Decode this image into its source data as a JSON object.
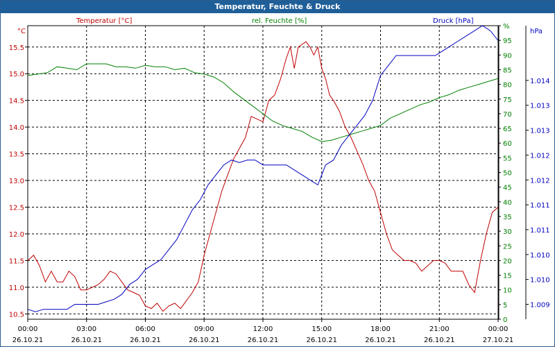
{
  "window": {
    "title": "Temperatur, Feuchte & Druck"
  },
  "colors": {
    "temperature": "#c00000",
    "humidity": "#008000",
    "pressure": "#0000c0",
    "titlebar": "#1f5f99"
  },
  "chart_data": {
    "type": "line",
    "grid": true,
    "legend": "top",
    "x_ticks": [
      {
        "time": "00:00",
        "date": "26.10.21"
      },
      {
        "time": "03:00",
        "date": "26.10.21"
      },
      {
        "time": "06:00",
        "date": "26.10.21"
      },
      {
        "time": "09:00",
        "date": "26.10.21"
      },
      {
        "time": "12:00",
        "date": "26.10.21"
      },
      {
        "time": "15:00",
        "date": "26.10.21"
      },
      {
        "time": "18:00",
        "date": "26.10.21"
      },
      {
        "time": "21:00",
        "date": "26.10.21"
      },
      {
        "time": "00:00",
        "date": "27.10.21"
      }
    ],
    "xlim_hours": [
      0,
      24
    ],
    "axes": {
      "temperature": {
        "unit": "°C",
        "ylim": [
          10.4,
          15.9
        ],
        "ticks": [
          "10.5",
          "11.0",
          "11.5",
          "12.0",
          "12.5",
          "13.0",
          "13.5",
          "14.0",
          "14.5",
          "15.0",
          "15.5"
        ]
      },
      "humidity": {
        "unit": "%",
        "ylim": [
          0,
          100
        ],
        "ticks": [
          "0",
          "5",
          "10",
          "15",
          "20",
          "25",
          "30",
          "35",
          "40",
          "45",
          "50",
          "55",
          "60",
          "65",
          "70",
          "75",
          "80",
          "85",
          "90",
          "95",
          "%"
        ]
      },
      "pressure": {
        "unit": "hPa",
        "ylim": [
          1.0087,
          1.0146
        ],
        "ticks": [
          "1.009",
          "1.010",
          "1.010",
          "1.011",
          "1.011",
          "1.012",
          "1.012",
          "1.013",
          "1.013",
          "1.014"
        ]
      }
    },
    "series": [
      {
        "name": "Temperatur [°C]",
        "axis": "temperature",
        "x": [
          0,
          0.3,
          0.6,
          0.9,
          1.2,
          1.5,
          1.8,
          2.1,
          2.4,
          2.7,
          3.0,
          3.3,
          3.6,
          3.9,
          4.2,
          4.5,
          4.8,
          5.1,
          5.4,
          5.7,
          6.0,
          6.3,
          6.6,
          6.9,
          7.2,
          7.5,
          7.8,
          8.1,
          8.4,
          8.7,
          9.0,
          9.3,
          9.6,
          9.9,
          10.2,
          10.5,
          10.8,
          11.1,
          11.4,
          11.7,
          12.0,
          12.3,
          12.6,
          12.9,
          13.2,
          13.4,
          13.6,
          13.8,
          14.0,
          14.2,
          14.4,
          14.6,
          14.8,
          15.0,
          15.2,
          15.4,
          15.6,
          15.9,
          16.2,
          16.5,
          16.8,
          17.1,
          17.4,
          17.7,
          18.0,
          18.3,
          18.6,
          18.9,
          19.2,
          19.5,
          19.8,
          20.1,
          20.4,
          20.7,
          21.0,
          21.3,
          21.6,
          21.9,
          22.2,
          22.5,
          22.8,
          23.1,
          23.4,
          23.7,
          24.0
        ],
        "values": [
          11.5,
          11.6,
          11.4,
          11.1,
          11.3,
          11.1,
          11.1,
          11.3,
          11.2,
          10.95,
          10.95,
          11.0,
          11.05,
          11.15,
          11.3,
          11.25,
          11.1,
          10.95,
          10.9,
          10.85,
          10.65,
          10.6,
          10.7,
          10.55,
          10.65,
          10.7,
          10.6,
          10.75,
          10.9,
          11.1,
          11.6,
          12.0,
          12.4,
          12.8,
          13.1,
          13.4,
          13.6,
          13.8,
          14.2,
          14.15,
          14.1,
          14.5,
          14.6,
          14.9,
          15.3,
          15.5,
          15.1,
          15.5,
          15.55,
          15.6,
          15.5,
          15.35,
          15.5,
          15.1,
          14.9,
          14.6,
          14.5,
          14.3,
          14.0,
          13.8,
          13.55,
          13.3,
          13.0,
          12.8,
          12.4,
          12.0,
          11.7,
          11.6,
          11.5,
          11.5,
          11.45,
          11.3,
          11.4,
          11.5,
          11.5,
          11.45,
          11.3,
          11.3,
          11.3,
          11.05,
          10.9,
          11.5,
          12.0,
          12.4,
          12.5
        ]
      },
      {
        "name": "rel. Feuchte [%]",
        "axis": "humidity",
        "x": [
          0,
          0.5,
          1.0,
          1.5,
          2.0,
          2.5,
          3.0,
          3.5,
          4.0,
          4.5,
          5.0,
          5.5,
          6.0,
          6.5,
          7.0,
          7.5,
          8.0,
          8.5,
          9.0,
          9.5,
          10.0,
          10.5,
          11.0,
          11.5,
          12.0,
          12.5,
          13.0,
          13.5,
          14.0,
          14.5,
          15.0,
          15.5,
          16.0,
          16.5,
          17.0,
          17.5,
          18.0,
          18.5,
          19.0,
          19.5,
          20.0,
          20.5,
          21.0,
          21.5,
          22.0,
          22.5,
          23.0,
          23.5,
          24.0
        ],
        "values": [
          83,
          83.5,
          84,
          86,
          85.5,
          85,
          87,
          87,
          87,
          86,
          86,
          85.5,
          86.5,
          86,
          86,
          85,
          85.5,
          84,
          83.5,
          82.5,
          80.5,
          77.5,
          75,
          72.5,
          70,
          67.5,
          66,
          65,
          64,
          62,
          60.5,
          61,
          62,
          63,
          64,
          65,
          66,
          68.5,
          70,
          71.5,
          73,
          74,
          75.5,
          76.5,
          78,
          79,
          80,
          81,
          82
        ]
      },
      {
        "name": "Druck [hPa]",
        "axis": "pressure",
        "x": [
          0,
          0.4,
          0.8,
          1.2,
          1.6,
          2.0,
          2.4,
          2.8,
          3.2,
          3.6,
          4.0,
          4.4,
          4.8,
          5.2,
          5.6,
          6.0,
          6.4,
          6.8,
          7.2,
          7.6,
          8.0,
          8.4,
          8.8,
          9.2,
          9.6,
          10.0,
          10.4,
          10.8,
          11.2,
          11.6,
          12.0,
          12.4,
          12.8,
          13.2,
          13.6,
          14.0,
          14.4,
          14.8,
          15.2,
          15.6,
          16.0,
          16.4,
          16.8,
          17.2,
          17.6,
          18.0,
          18.4,
          18.8,
          19.2,
          19.6,
          20.0,
          20.4,
          20.8,
          21.2,
          21.6,
          22.0,
          22.4,
          22.8,
          23.2,
          23.6,
          24.0
        ],
        "values": [
          1.0089,
          1.00885,
          1.0089,
          1.0089,
          1.0089,
          1.0089,
          1.009,
          1.009,
          1.009,
          1.009,
          1.00905,
          1.0091,
          1.0092,
          1.0094,
          1.0095,
          1.0097,
          1.0098,
          1.0099,
          1.0101,
          1.0103,
          1.0106,
          1.0109,
          1.0111,
          1.0114,
          1.0116,
          1.0118,
          1.0119,
          1.01185,
          1.0119,
          1.0119,
          1.0118,
          1.0118,
          1.0118,
          1.0118,
          1.0117,
          1.0116,
          1.0115,
          1.0114,
          1.0118,
          1.0119,
          1.0122,
          1.0124,
          1.0126,
          1.0128,
          1.0131,
          1.0136,
          1.0138,
          1.014,
          1.014,
          1.014,
          1.014,
          1.014,
          1.014,
          1.0141,
          1.0142,
          1.0143,
          1.0144,
          1.0145,
          1.0146,
          1.0145,
          1.0143
        ]
      }
    ]
  }
}
